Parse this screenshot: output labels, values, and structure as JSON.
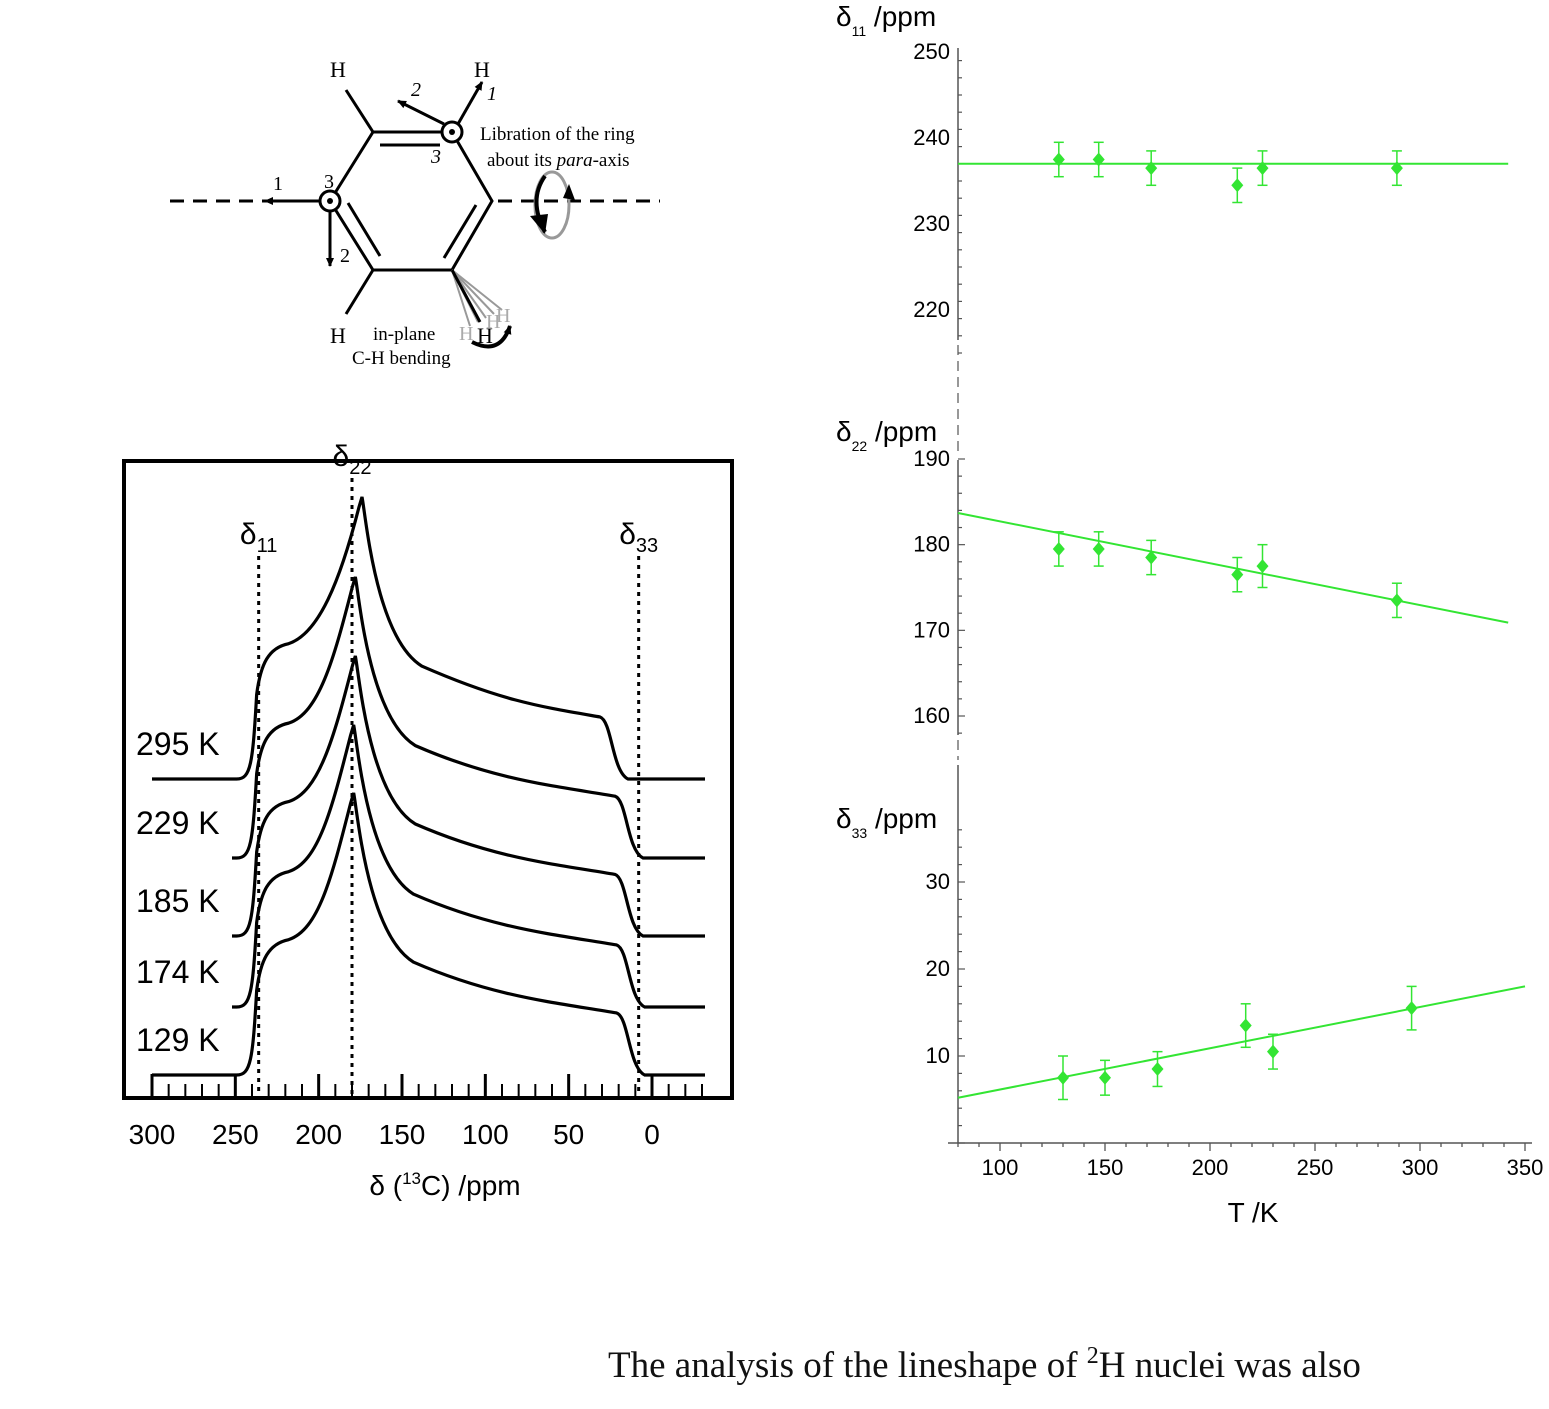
{
  "diagram": {
    "h_labels": [
      "H",
      "H",
      "H",
      "H"
    ],
    "arrow_labels": {
      "a1": "1",
      "a2": "2",
      "a3": "3",
      "b1": "1",
      "b2": "2",
      "b3": "3"
    },
    "libration_line1": "Libration of the ring",
    "libration_line2_pre": "about its ",
    "libration_line2_em": "para",
    "libration_line2_post": "-axis",
    "bending_line1": "in-plane",
    "bending_line2": "C-H bending",
    "ghost_h": "H"
  },
  "colors": {
    "line": "#000000",
    "green": "#33e533",
    "grey": "#9a9a9a"
  },
  "chart_data": [
    {
      "type": "line",
      "title": "",
      "xlabel_pre": "δ (",
      "xlabel_sup": "13",
      "xlabel_post": "C) /ppm",
      "x_ticks": [
        "300",
        "250",
        "200",
        "150",
        "100",
        "50",
        "0"
      ],
      "x_tick_values": [
        300,
        250,
        200,
        150,
        100,
        50,
        0
      ],
      "xlim": [
        312,
        -50
      ],
      "series": [
        {
          "name": "295 K",
          "d11": 236,
          "d22": 174,
          "d33": 18
        },
        {
          "name": "229 K",
          "d11": 236,
          "d22": 178,
          "d33": 9
        },
        {
          "name": "185 K",
          "d11": 236,
          "d22": 178,
          "d33": 9
        },
        {
          "name": "174 K",
          "d11": 236,
          "d22": 179,
          "d33": 8
        },
        {
          "name": "129 K",
          "d11": 236,
          "d22": 179,
          "d33": 8
        }
      ],
      "markers": [
        {
          "sym": "δ",
          "sub": "11",
          "value": 236
        },
        {
          "sym": "δ",
          "sub": "22",
          "value": 180
        },
        {
          "sym": "δ",
          "sub": "33",
          "value": 8
        }
      ]
    },
    {
      "type": "scatter",
      "xlabel": "T /K",
      "xlim": [
        80,
        350
      ],
      "x_ticks": [
        "100",
        "150",
        "200",
        "250",
        "300",
        "350"
      ],
      "x_tick_values": [
        100,
        150,
        200,
        250,
        300,
        350
      ],
      "panels": [
        {
          "ylabel_sym": "δ",
          "ylabel_sub": "11",
          "ylabel_post": " /ppm",
          "ylim": [
            212,
            250
          ],
          "y_ticks": [
            "250",
            "240",
            "230",
            "220"
          ],
          "y_tick_values": [
            250,
            240,
            230,
            220
          ],
          "points": [
            {
              "x": 128,
              "y": 237.5,
              "err": 2
            },
            {
              "x": 147,
              "y": 237.5,
              "err": 2
            },
            {
              "x": 172,
              "y": 236.5,
              "err": 2
            },
            {
              "x": 213,
              "y": 234.5,
              "err": 2
            },
            {
              "x": 225,
              "y": 236.5,
              "err": 2
            },
            {
              "x": 289,
              "y": 236.5,
              "err": 2
            }
          ],
          "fit": {
            "x": [
              80,
              342
            ],
            "y": [
              237,
              237
            ]
          }
        },
        {
          "ylabel_sym": "δ",
          "ylabel_sub": "22",
          "ylabel_post": " /ppm",
          "ylim": [
            155,
            190
          ],
          "y_ticks": [
            "190",
            "180",
            "170",
            "160"
          ],
          "y_tick_values": [
            190,
            180,
            170,
            160
          ],
          "points": [
            {
              "x": 128,
              "y": 179.5,
              "err": 2
            },
            {
              "x": 147,
              "y": 179.5,
              "err": 2
            },
            {
              "x": 172,
              "y": 178.5,
              "err": 2
            },
            {
              "x": 213,
              "y": 176.5,
              "err": 2
            },
            {
              "x": 225,
              "y": 177.5,
              "err": 2.5
            },
            {
              "x": 289,
              "y": 173.5,
              "err": 2
            }
          ],
          "fit": {
            "x": [
              80,
              342
            ],
            "y": [
              183.7,
              170.9
            ]
          }
        },
        {
          "ylabel_sym": "δ",
          "ylabel_sub": "33",
          "ylabel_post": " /ppm",
          "ylim": [
            0,
            36
          ],
          "y_ticks": [
            "30",
            "20",
            "10"
          ],
          "y_tick_values": [
            30,
            20,
            10
          ],
          "points": [
            {
              "x": 130,
              "y": 7.5,
              "err": 2.5
            },
            {
              "x": 150,
              "y": 7.5,
              "err": 2
            },
            {
              "x": 175,
              "y": 8.5,
              "err": 2
            },
            {
              "x": 217,
              "y": 13.5,
              "err": 2.5
            },
            {
              "x": 230,
              "y": 10.5,
              "err": 2
            },
            {
              "x": 296,
              "y": 15.5,
              "err": 2.5
            }
          ],
          "fit": {
            "x": [
              80,
              350
            ],
            "y": [
              5.2,
              18
            ]
          }
        }
      ]
    }
  ],
  "body": {
    "text_pre": "The analysis of the lineshape of ",
    "text_sup": "2",
    "text_post": "H nuclei was also"
  }
}
